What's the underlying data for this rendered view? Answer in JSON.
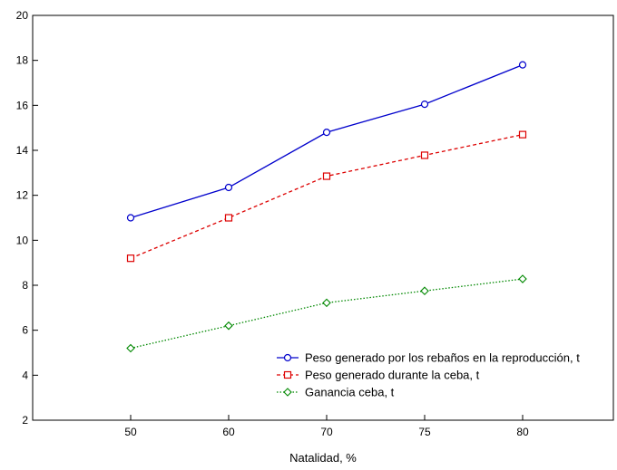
{
  "chart_data": {
    "type": "line",
    "title": "",
    "xlabel": "Natalidad, %",
    "ylabel": "",
    "categories": [
      "50",
      "60",
      "70",
      "75",
      "80"
    ],
    "ylim": [
      2,
      20
    ],
    "yticks": [
      "2",
      "4",
      "6",
      "8",
      "10",
      "12",
      "14",
      "16",
      "18",
      "20"
    ],
    "grid": false,
    "legend_position": "bottom-right",
    "series": [
      {
        "name": "Peso generado por los rebaños en la reproducción, t",
        "values": [
          11.0,
          12.35,
          14.8,
          16.05,
          17.8
        ],
        "color": "#0000cc",
        "line_style": "solid",
        "marker": "circle"
      },
      {
        "name": "Peso generado durante la ceba, t",
        "values": [
          9.2,
          11.0,
          12.85,
          13.78,
          14.7
        ],
        "color": "#dd0000",
        "line_style": "dashed",
        "marker": "square"
      },
      {
        "name": "Ganancia ceba, t",
        "values": [
          5.2,
          6.2,
          7.22,
          7.75,
          8.28
        ],
        "color": "#008800",
        "line_style": "dotted",
        "marker": "diamond"
      }
    ]
  }
}
